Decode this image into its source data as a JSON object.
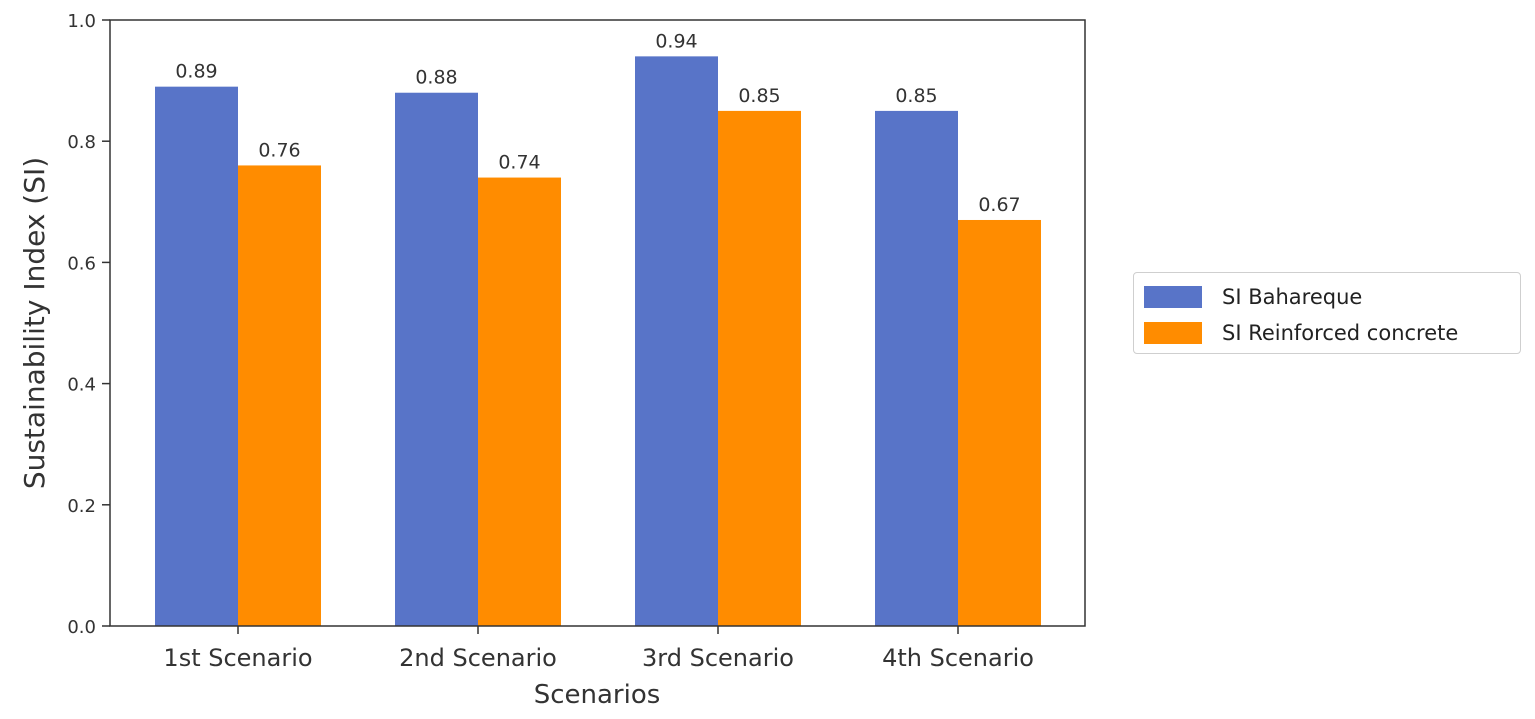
{
  "chart_data": {
    "type": "bar",
    "title": "",
    "xlabel": "Scenarios",
    "ylabel": "Sustainability Index (SI)",
    "categories": [
      "1st Scenario",
      "2nd Scenario",
      "3rd Scenario",
      "4th Scenario"
    ],
    "series": [
      {
        "name": "SI Bahareque",
        "values": [
          0.89,
          0.88,
          0.94,
          0.85
        ],
        "labels": [
          "0.89",
          "0.88",
          "0.94",
          "0.85"
        ],
        "color": "#5874c8"
      },
      {
        "name": "SI Reinforced concrete",
        "values": [
          0.76,
          0.74,
          0.85,
          0.67
        ],
        "labels": [
          "0.76",
          "0.74",
          "0.85",
          "0.67"
        ],
        "color": "#ff8c00"
      }
    ],
    "ylim": [
      0,
      1.0
    ],
    "yticks": [
      "0.0",
      "0.2",
      "0.4",
      "0.6",
      "0.8",
      "1.0"
    ],
    "grid": false,
    "legend_position": "right"
  }
}
